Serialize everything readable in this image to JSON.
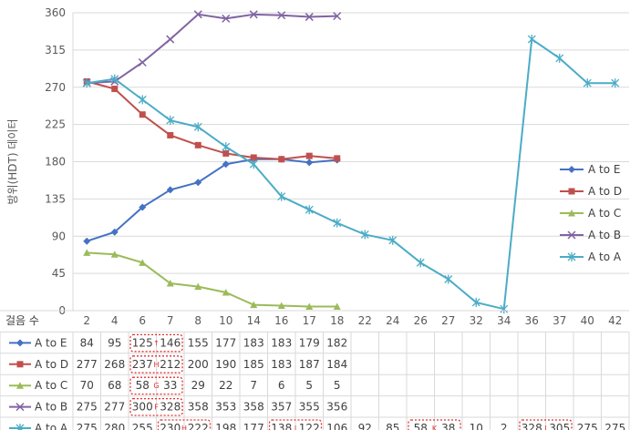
{
  "chart_data": {
    "type": "line",
    "ylabel": "방위(HDT) 데이터",
    "table_header": "걸음 수",
    "categories": [
      "2",
      "4",
      "6",
      "7",
      "8",
      "10",
      "14",
      "16",
      "17",
      "18",
      "22",
      "24",
      "26",
      "27",
      "32",
      "34",
      "36",
      "37",
      "40",
      "42"
    ],
    "ylim": [
      0,
      360
    ],
    "yticks": [
      0,
      45,
      90,
      135,
      180,
      225,
      270,
      315,
      360
    ],
    "grid": true,
    "legend_position": "right",
    "series": [
      {
        "name": "A to E",
        "color": "#4472C4",
        "marker": "diamond",
        "values": [
          84,
          95,
          125,
          146,
          155,
          177,
          183,
          183,
          179,
          182,
          null,
          null,
          null,
          null,
          null,
          null,
          null,
          null,
          null,
          null
        ]
      },
      {
        "name": "A to D",
        "color": "#C0504D",
        "marker": "square",
        "values": [
          277,
          268,
          237,
          212,
          200,
          190,
          185,
          183,
          187,
          184,
          null,
          null,
          null,
          null,
          null,
          null,
          null,
          null,
          null,
          null
        ]
      },
      {
        "name": "A to C",
        "color": "#9BBB59",
        "marker": "triangle",
        "values": [
          70,
          68,
          58,
          33,
          29,
          22,
          7,
          6,
          5,
          5,
          null,
          null,
          null,
          null,
          null,
          null,
          null,
          null,
          null,
          null
        ]
      },
      {
        "name": "A to B",
        "color": "#8064A2",
        "marker": "x",
        "values": [
          275,
          277,
          300,
          328,
          358,
          353,
          358,
          357,
          355,
          356,
          null,
          null,
          null,
          null,
          null,
          null,
          null,
          null,
          null,
          null
        ]
      },
      {
        "name": "A to A",
        "color": "#4BACC6",
        "marker": "star",
        "values": [
          275,
          280,
          255,
          230,
          222,
          198,
          177,
          138,
          122,
          106,
          92,
          85,
          58,
          38,
          10,
          2,
          328,
          305,
          275,
          275
        ]
      }
    ],
    "table_cells": [
      [
        "84",
        "95",
        "125",
        "146",
        "155",
        "177",
        "183",
        "183",
        "179",
        "182",
        "",
        "",
        "",
        "",
        "",
        "",
        "",
        "",
        "",
        ""
      ],
      [
        "277",
        "268",
        "237",
        "212",
        "200",
        "190",
        "185",
        "183",
        "187",
        "184",
        "",
        "",
        "",
        "",
        "",
        "",
        "",
        "",
        "",
        ""
      ],
      [
        "70",
        "68",
        "58",
        "33",
        "29",
        "22",
        "7",
        "6",
        "5",
        "5",
        "",
        "",
        "",
        "",
        "",
        "",
        "",
        "",
        "",
        ""
      ],
      [
        "275",
        "277",
        "300",
        "328",
        "358",
        "353",
        "358",
        "357",
        "355",
        "356",
        "",
        "",
        "",
        "",
        "",
        "",
        "",
        "",
        "",
        ""
      ],
      [
        "275",
        "280",
        "255",
        "230",
        "222",
        "198",
        "177",
        "138",
        "122",
        "106",
        "92",
        "85",
        "58",
        "38",
        "10",
        "2",
        "328",
        "305",
        "275",
        "275"
      ]
    ],
    "highlight_groups": [
      {
        "row": 0,
        "cols": [
          2,
          3
        ],
        "marker": "↑"
      },
      {
        "row": 1,
        "cols": [
          2,
          3
        ],
        "marker": "H"
      },
      {
        "row": 2,
        "cols": [
          2,
          3
        ],
        "marker": "G"
      },
      {
        "row": 3,
        "cols": [
          2,
          3
        ],
        "marker": "F"
      },
      {
        "row": 4,
        "cols": [
          3,
          4
        ],
        "marker": "H"
      },
      {
        "row": 4,
        "cols": [
          7,
          8
        ],
        "marker": "J"
      },
      {
        "row": 4,
        "cols": [
          12,
          13
        ],
        "marker": "K"
      },
      {
        "row": 4,
        "cols": [
          16,
          17
        ],
        "marker": "I"
      }
    ]
  }
}
